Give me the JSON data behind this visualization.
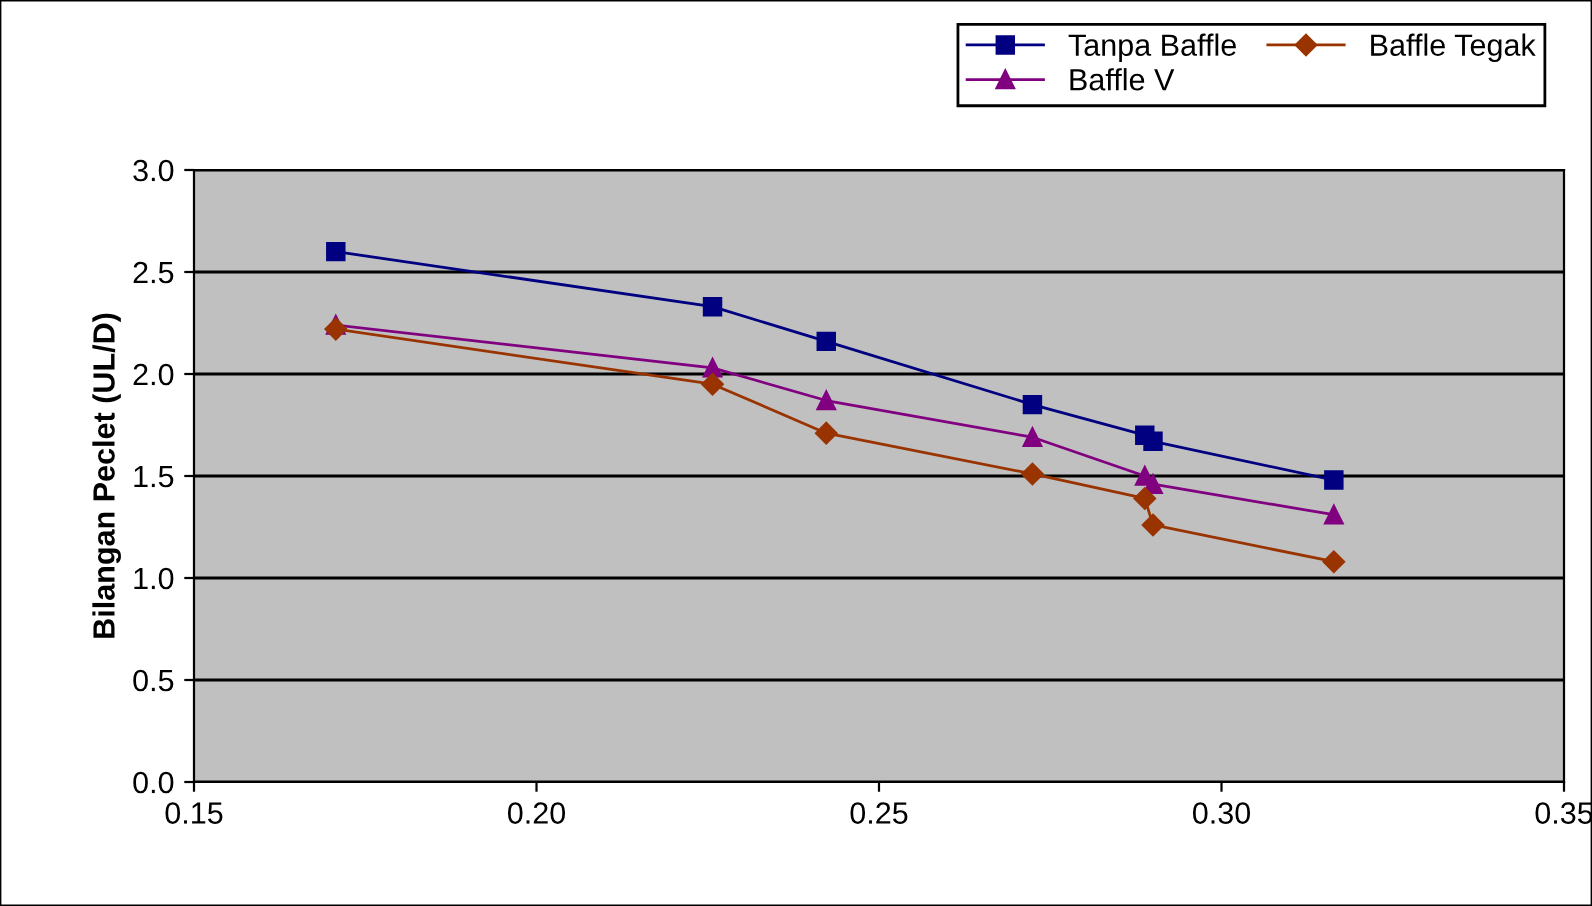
{
  "chart_data": {
    "type": "line",
    "ylabel": "Bilangan Peclet (UL/D)",
    "series": [
      {
        "name": "Tanpa Baffle",
        "color": "#000080",
        "marker": "square",
        "x": [
          0.1707,
          0.2257,
          0.2423,
          0.2724,
          0.2888,
          0.29,
          0.3164
        ],
        "values": [
          2.6,
          2.33,
          2.16,
          1.85,
          1.7,
          1.67,
          1.48
        ]
      },
      {
        "name": "Baffle Tegak",
        "color": "#993300",
        "marker": "diamond",
        "x": [
          0.1707,
          0.2257,
          0.2423,
          0.2724,
          0.2888,
          0.29,
          0.3164
        ],
        "values": [
          2.22,
          1.95,
          1.71,
          1.51,
          1.39,
          1.26,
          1.08
        ]
      },
      {
        "name": "Baffle V",
        "color": "#800080",
        "marker": "triangle",
        "x": [
          0.1707,
          0.2257,
          0.2423,
          0.2724,
          0.2888,
          0.29,
          0.3164
        ],
        "values": [
          2.24,
          2.03,
          1.87,
          1.69,
          1.5,
          1.46,
          1.31
        ]
      }
    ],
    "xlim": [
      0.15,
      0.35
    ],
    "xticks": [
      {
        "value": 0.15,
        "label": "0.15"
      },
      {
        "value": 0.2,
        "label": "0.20"
      },
      {
        "value": 0.25,
        "label": "0.25"
      },
      {
        "value": 0.3,
        "label": "0.30"
      },
      {
        "value": 0.35,
        "label": "0.35"
      }
    ],
    "ylim": [
      0,
      3
    ],
    "yticks": [
      {
        "value": 0,
        "label": "0.0"
      },
      {
        "value": 0.5,
        "label": "0.5"
      },
      {
        "value": 1,
        "label": "1.0"
      },
      {
        "value": 1.5,
        "label": "1.5"
      },
      {
        "value": 2,
        "label": "2.0"
      },
      {
        "value": 2.5,
        "label": "2.5"
      },
      {
        "value": 3,
        "label": "3.0"
      }
    ],
    "grid": "y",
    "legend": "top right",
    "line_style": "solid"
  }
}
